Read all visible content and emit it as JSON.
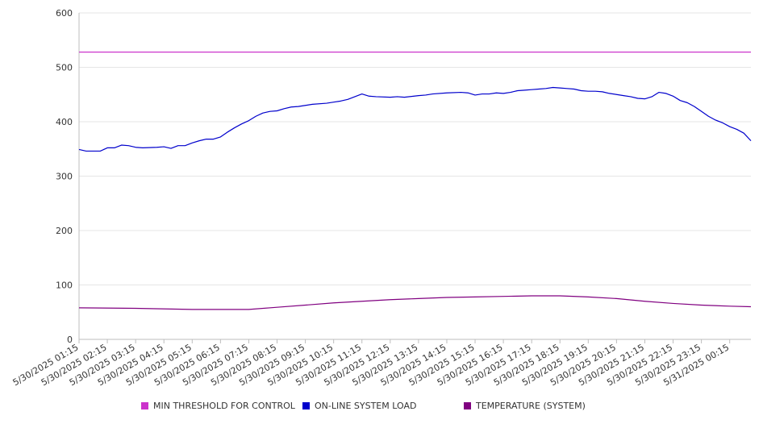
{
  "chart_data": {
    "type": "line",
    "title": "",
    "xlabel": "",
    "ylabel": "",
    "ylim": [
      0,
      600
    ],
    "yticks": [
      "0",
      "100",
      "200",
      "300",
      "400",
      "500",
      "600"
    ],
    "x_tick_labels": [
      "5/30/2025 01:15",
      "5/30/2025 02:15",
      "5/30/2025 03:15",
      "5/30/2025 04:15",
      "5/30/2025 05:15",
      "5/30/2025 06:15",
      "5/30/2025 07:15",
      "5/30/2025 08:15",
      "5/30/2025 09:15",
      "5/30/2025 10:15",
      "5/30/2025 11:15",
      "5/30/2025 12:15",
      "5/30/2025 13:15",
      "5/30/2025 14:15",
      "5/30/2025 15:15",
      "5/30/2025 16:15",
      "5/30/2025 17:15",
      "5/30/2025 18:15",
      "5/30/2025 19:15",
      "5/30/2025 20:15",
      "5/30/2025 21:15",
      "5/30/2025 22:15",
      "5/30/2025 23:15",
      "5/31/2025 00:15"
    ],
    "x_range": [
      "5/30/2025 01:15",
      "5/31/2025 01:00"
    ],
    "grid": true,
    "legend_position": "bottom",
    "series": [
      {
        "name": "MIN THRESHOLD FOR CONTROL",
        "color": "#cc33cc",
        "points": [
          [
            "5/30/2025 01:15",
            528
          ],
          [
            "5/31/2025 01:00",
            528
          ]
        ]
      },
      {
        "name": "ON-LINE SYSTEM LOAD",
        "color": "#0000cc",
        "points": [
          [
            "5/30/2025 01:15",
            349
          ],
          [
            "5/30/2025 01:30",
            346
          ],
          [
            "5/30/2025 02:00",
            346
          ],
          [
            "5/30/2025 02:15",
            352
          ],
          [
            "5/30/2025 02:30",
            352
          ],
          [
            "5/30/2025 02:45",
            357
          ],
          [
            "5/30/2025 03:00",
            356
          ],
          [
            "5/30/2025 03:15",
            353
          ],
          [
            "5/30/2025 03:30",
            352
          ],
          [
            "5/30/2025 04:00",
            353
          ],
          [
            "5/30/2025 04:15",
            354
          ],
          [
            "5/30/2025 04:30",
            351
          ],
          [
            "5/30/2025 04:45",
            356
          ],
          [
            "5/30/2025 05:00",
            356
          ],
          [
            "5/30/2025 05:15",
            361
          ],
          [
            "5/30/2025 05:30",
            365
          ],
          [
            "5/30/2025 05:45",
            368
          ],
          [
            "5/30/2025 06:00",
            368
          ],
          [
            "5/30/2025 06:15",
            372
          ],
          [
            "5/30/2025 06:30",
            381
          ],
          [
            "5/30/2025 06:45",
            389
          ],
          [
            "5/30/2025 07:00",
            396
          ],
          [
            "5/30/2025 07:15",
            402
          ],
          [
            "5/30/2025 07:30",
            410
          ],
          [
            "5/30/2025 07:45",
            416
          ],
          [
            "5/30/2025 08:00",
            419
          ],
          [
            "5/30/2025 08:15",
            420
          ],
          [
            "5/30/2025 08:30",
            424
          ],
          [
            "5/30/2025 08:45",
            427
          ],
          [
            "5/30/2025 09:00",
            428
          ],
          [
            "5/30/2025 09:15",
            430
          ],
          [
            "5/30/2025 09:30",
            432
          ],
          [
            "5/30/2025 10:00",
            434
          ],
          [
            "5/30/2025 10:15",
            436
          ],
          [
            "5/30/2025 10:30",
            438
          ],
          [
            "5/30/2025 10:45",
            441
          ],
          [
            "5/30/2025 11:00",
            446
          ],
          [
            "5/30/2025 11:15",
            451
          ],
          [
            "5/30/2025 11:30",
            447
          ],
          [
            "5/30/2025 11:45",
            446
          ],
          [
            "5/30/2025 12:15",
            445
          ],
          [
            "5/30/2025 12:30",
            446
          ],
          [
            "5/30/2025 12:45",
            445
          ],
          [
            "5/30/2025 13:15",
            448
          ],
          [
            "5/30/2025 13:30",
            449
          ],
          [
            "5/30/2025 13:45",
            451
          ],
          [
            "5/30/2025 14:15",
            453
          ],
          [
            "5/30/2025 14:45",
            454
          ],
          [
            "5/30/2025 15:00",
            453
          ],
          [
            "5/30/2025 15:15",
            449
          ],
          [
            "5/30/2025 15:30",
            451
          ],
          [
            "5/30/2025 15:45",
            451
          ],
          [
            "5/30/2025 16:00",
            453
          ],
          [
            "5/30/2025 16:15",
            452
          ],
          [
            "5/30/2025 16:30",
            454
          ],
          [
            "5/30/2025 16:45",
            457
          ],
          [
            "5/30/2025 17:00",
            458
          ],
          [
            "5/30/2025 17:15",
            459
          ],
          [
            "5/30/2025 17:30",
            460
          ],
          [
            "5/30/2025 17:45",
            461
          ],
          [
            "5/30/2025 18:00",
            463
          ],
          [
            "5/30/2025 18:15",
            462
          ],
          [
            "5/30/2025 18:30",
            461
          ],
          [
            "5/30/2025 18:45",
            460
          ],
          [
            "5/30/2025 19:00",
            457
          ],
          [
            "5/30/2025 19:15",
            456
          ],
          [
            "5/30/2025 19:30",
            456
          ],
          [
            "5/30/2025 19:45",
            455
          ],
          [
            "5/30/2025 20:00",
            452
          ],
          [
            "5/30/2025 20:15",
            450
          ],
          [
            "5/30/2025 20:30",
            448
          ],
          [
            "5/30/2025 20:45",
            446
          ],
          [
            "5/30/2025 21:00",
            443
          ],
          [
            "5/30/2025 21:15",
            442
          ],
          [
            "5/30/2025 21:30",
            446
          ],
          [
            "5/30/2025 21:45",
            454
          ],
          [
            "5/30/2025 22:00",
            452
          ],
          [
            "5/30/2025 22:15",
            447
          ],
          [
            "5/30/2025 22:30",
            439
          ],
          [
            "5/30/2025 22:45",
            435
          ],
          [
            "5/30/2025 23:00",
            428
          ],
          [
            "5/30/2025 23:15",
            419
          ],
          [
            "5/30/2025 23:30",
            410
          ],
          [
            "5/30/2025 23:45",
            403
          ],
          [
            "5/31/2025 00:00",
            398
          ],
          [
            "5/31/2025 00:15",
            391
          ],
          [
            "5/31/2025 00:30",
            386
          ],
          [
            "5/31/2025 00:45",
            379
          ],
          [
            "5/31/2025 01:00",
            365
          ]
        ]
      },
      {
        "name": "TEMPERATURE (SYSTEM)",
        "color": "#800080",
        "points": [
          [
            "5/30/2025 01:15",
            58
          ],
          [
            "5/30/2025 03:15",
            57
          ],
          [
            "5/30/2025 05:15",
            55
          ],
          [
            "5/30/2025 07:15",
            55
          ],
          [
            "5/30/2025 08:15",
            59
          ],
          [
            "5/30/2025 09:15",
            63
          ],
          [
            "5/30/2025 10:15",
            67
          ],
          [
            "5/30/2025 11:15",
            70
          ],
          [
            "5/30/2025 12:15",
            73
          ],
          [
            "5/30/2025 13:15",
            75
          ],
          [
            "5/30/2025 14:15",
            77
          ],
          [
            "5/30/2025 15:15",
            78
          ],
          [
            "5/30/2025 16:15",
            79
          ],
          [
            "5/30/2025 17:15",
            80
          ],
          [
            "5/30/2025 18:15",
            80
          ],
          [
            "5/30/2025 19:15",
            78
          ],
          [
            "5/30/2025 20:15",
            75
          ],
          [
            "5/30/2025 21:15",
            70
          ],
          [
            "5/30/2025 22:15",
            66
          ],
          [
            "5/30/2025 23:15",
            63
          ],
          [
            "5/31/2025 00:15",
            61
          ],
          [
            "5/31/2025 01:00",
            60
          ]
        ]
      }
    ]
  }
}
